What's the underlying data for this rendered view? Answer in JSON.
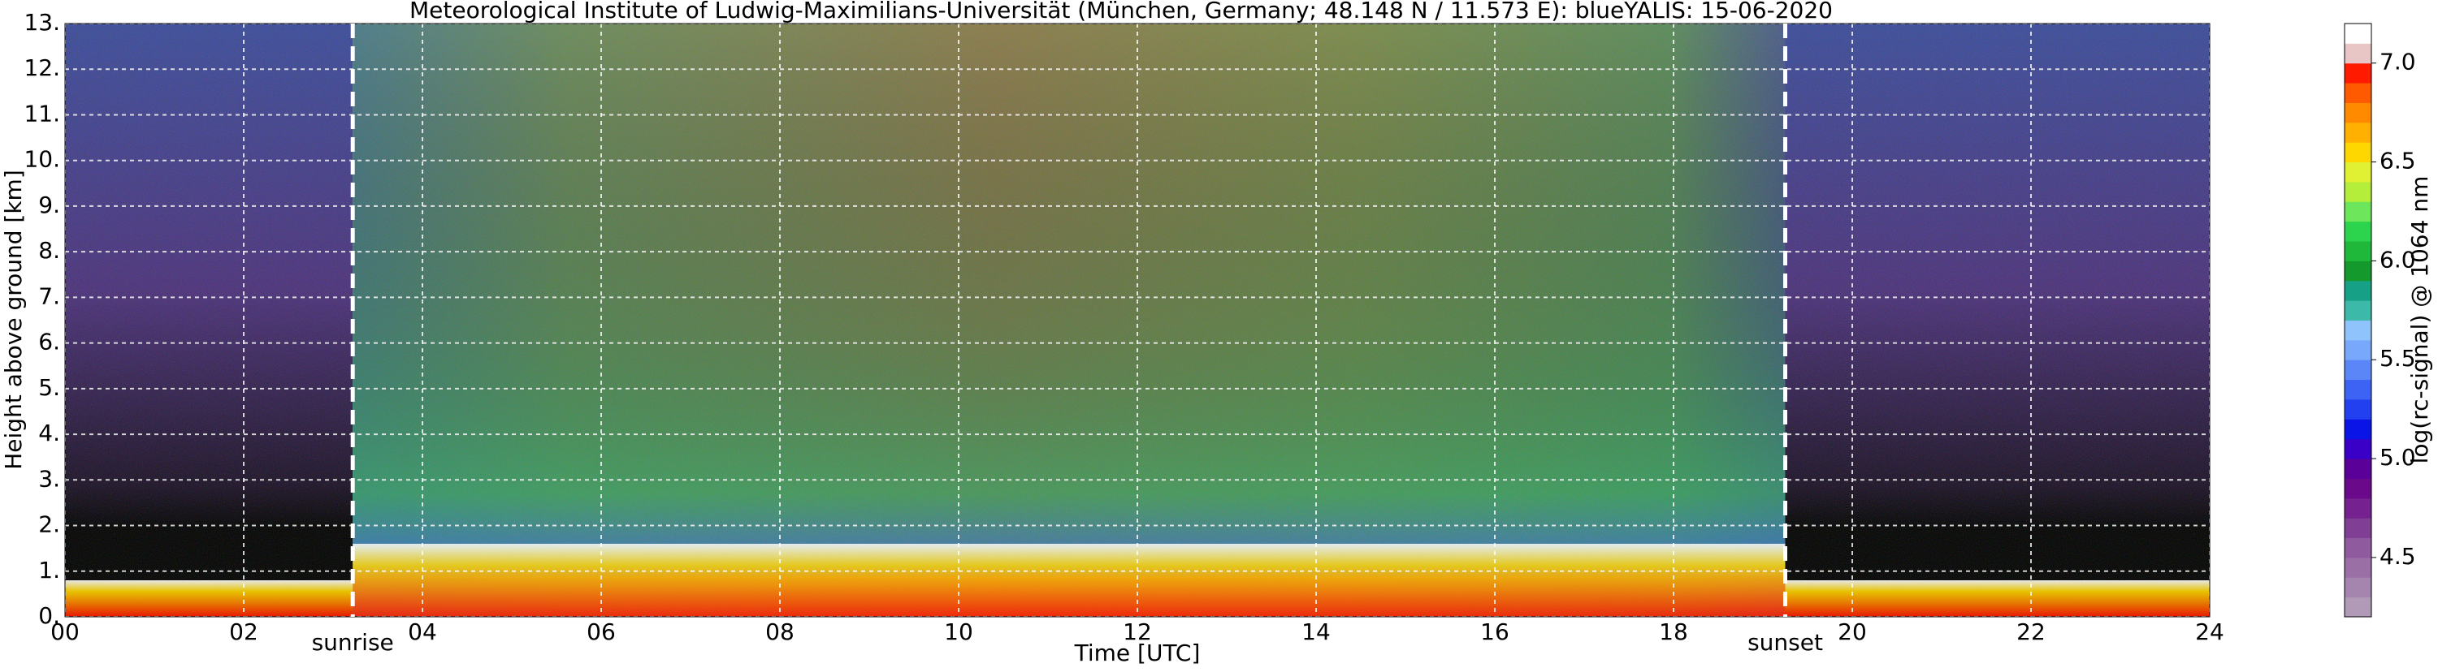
{
  "chart_data": {
    "type": "heatmap",
    "title": "Meteorological Institute of Ludwig-Maximilians-Universität (München, Germany; 48.148 N / 11.573 E):    blueYALIS: 15-06-2020",
    "x_label": "Time [UTC]",
    "y_label": "Height above ground [km]",
    "xlim": [
      0,
      24
    ],
    "xticks": [
      {
        "value": 0,
        "label": "00"
      },
      {
        "value": 2,
        "label": "02"
      },
      {
        "value": 4,
        "label": "04"
      },
      {
        "value": 6,
        "label": "06"
      },
      {
        "value": 8,
        "label": "08"
      },
      {
        "value": 10,
        "label": "10"
      },
      {
        "value": 12,
        "label": "12"
      },
      {
        "value": 14,
        "label": "14"
      },
      {
        "value": 16,
        "label": "16"
      },
      {
        "value": 18,
        "label": "18"
      },
      {
        "value": 20,
        "label": "20"
      },
      {
        "value": 22,
        "label": "22"
      },
      {
        "value": 24,
        "label": "24"
      }
    ],
    "ylim": [
      0,
      13
    ],
    "yticks": [
      {
        "value": 0,
        "label": "0."
      },
      {
        "value": 1,
        "label": "1."
      },
      {
        "value": 2,
        "label": "2."
      },
      {
        "value": 3,
        "label": "3."
      },
      {
        "value": 4,
        "label": "4."
      },
      {
        "value": 5,
        "label": "5."
      },
      {
        "value": 6,
        "label": "6."
      },
      {
        "value": 7,
        "label": "7."
      },
      {
        "value": 8,
        "label": "8."
      },
      {
        "value": 9,
        "label": "9."
      },
      {
        "value": 10,
        "label": "10."
      },
      {
        "value": 11,
        "label": "11."
      },
      {
        "value": 12,
        "label": "12."
      },
      {
        "value": 13,
        "label": "13."
      }
    ],
    "grid": true,
    "annotations": [
      {
        "text": "sunrise",
        "x": 3.22
      },
      {
        "text": "sunset",
        "x": 19.25
      }
    ],
    "colorbar": {
      "label": "log(rc-signal) @ 1064 nm",
      "lim": [
        4.2,
        7.2
      ],
      "ticks": [
        4.5,
        {
          "value": 5,
          "label": "5.0"
        },
        5.5,
        {
          "value": 6,
          "label": "6.0"
        },
        6.5,
        {
          "value": 7,
          "label": "7.0"
        }
      ],
      "colors": [
        "#b09ab8",
        "#a585ae",
        "#9a6fa6",
        "#8f5a9e",
        "#803f95",
        "#75218f",
        "#6a0a8a",
        "#5a0099",
        "#3a00c8",
        "#0a14e6",
        "#2240f0",
        "#3d63f5",
        "#5a86f8",
        "#77a8fb",
        "#8fc3fc",
        "#3cb9a8",
        "#16a085",
        "#14992c",
        "#1fb83a",
        "#2cd34c",
        "#6ee65c",
        "#b5ee3a",
        "#e0f032",
        "#ffd700",
        "#ffb000",
        "#ff8a00",
        "#ff5a00",
        "#ff1a00",
        "#e8c6c6",
        "#ffffff"
      ]
    }
  }
}
